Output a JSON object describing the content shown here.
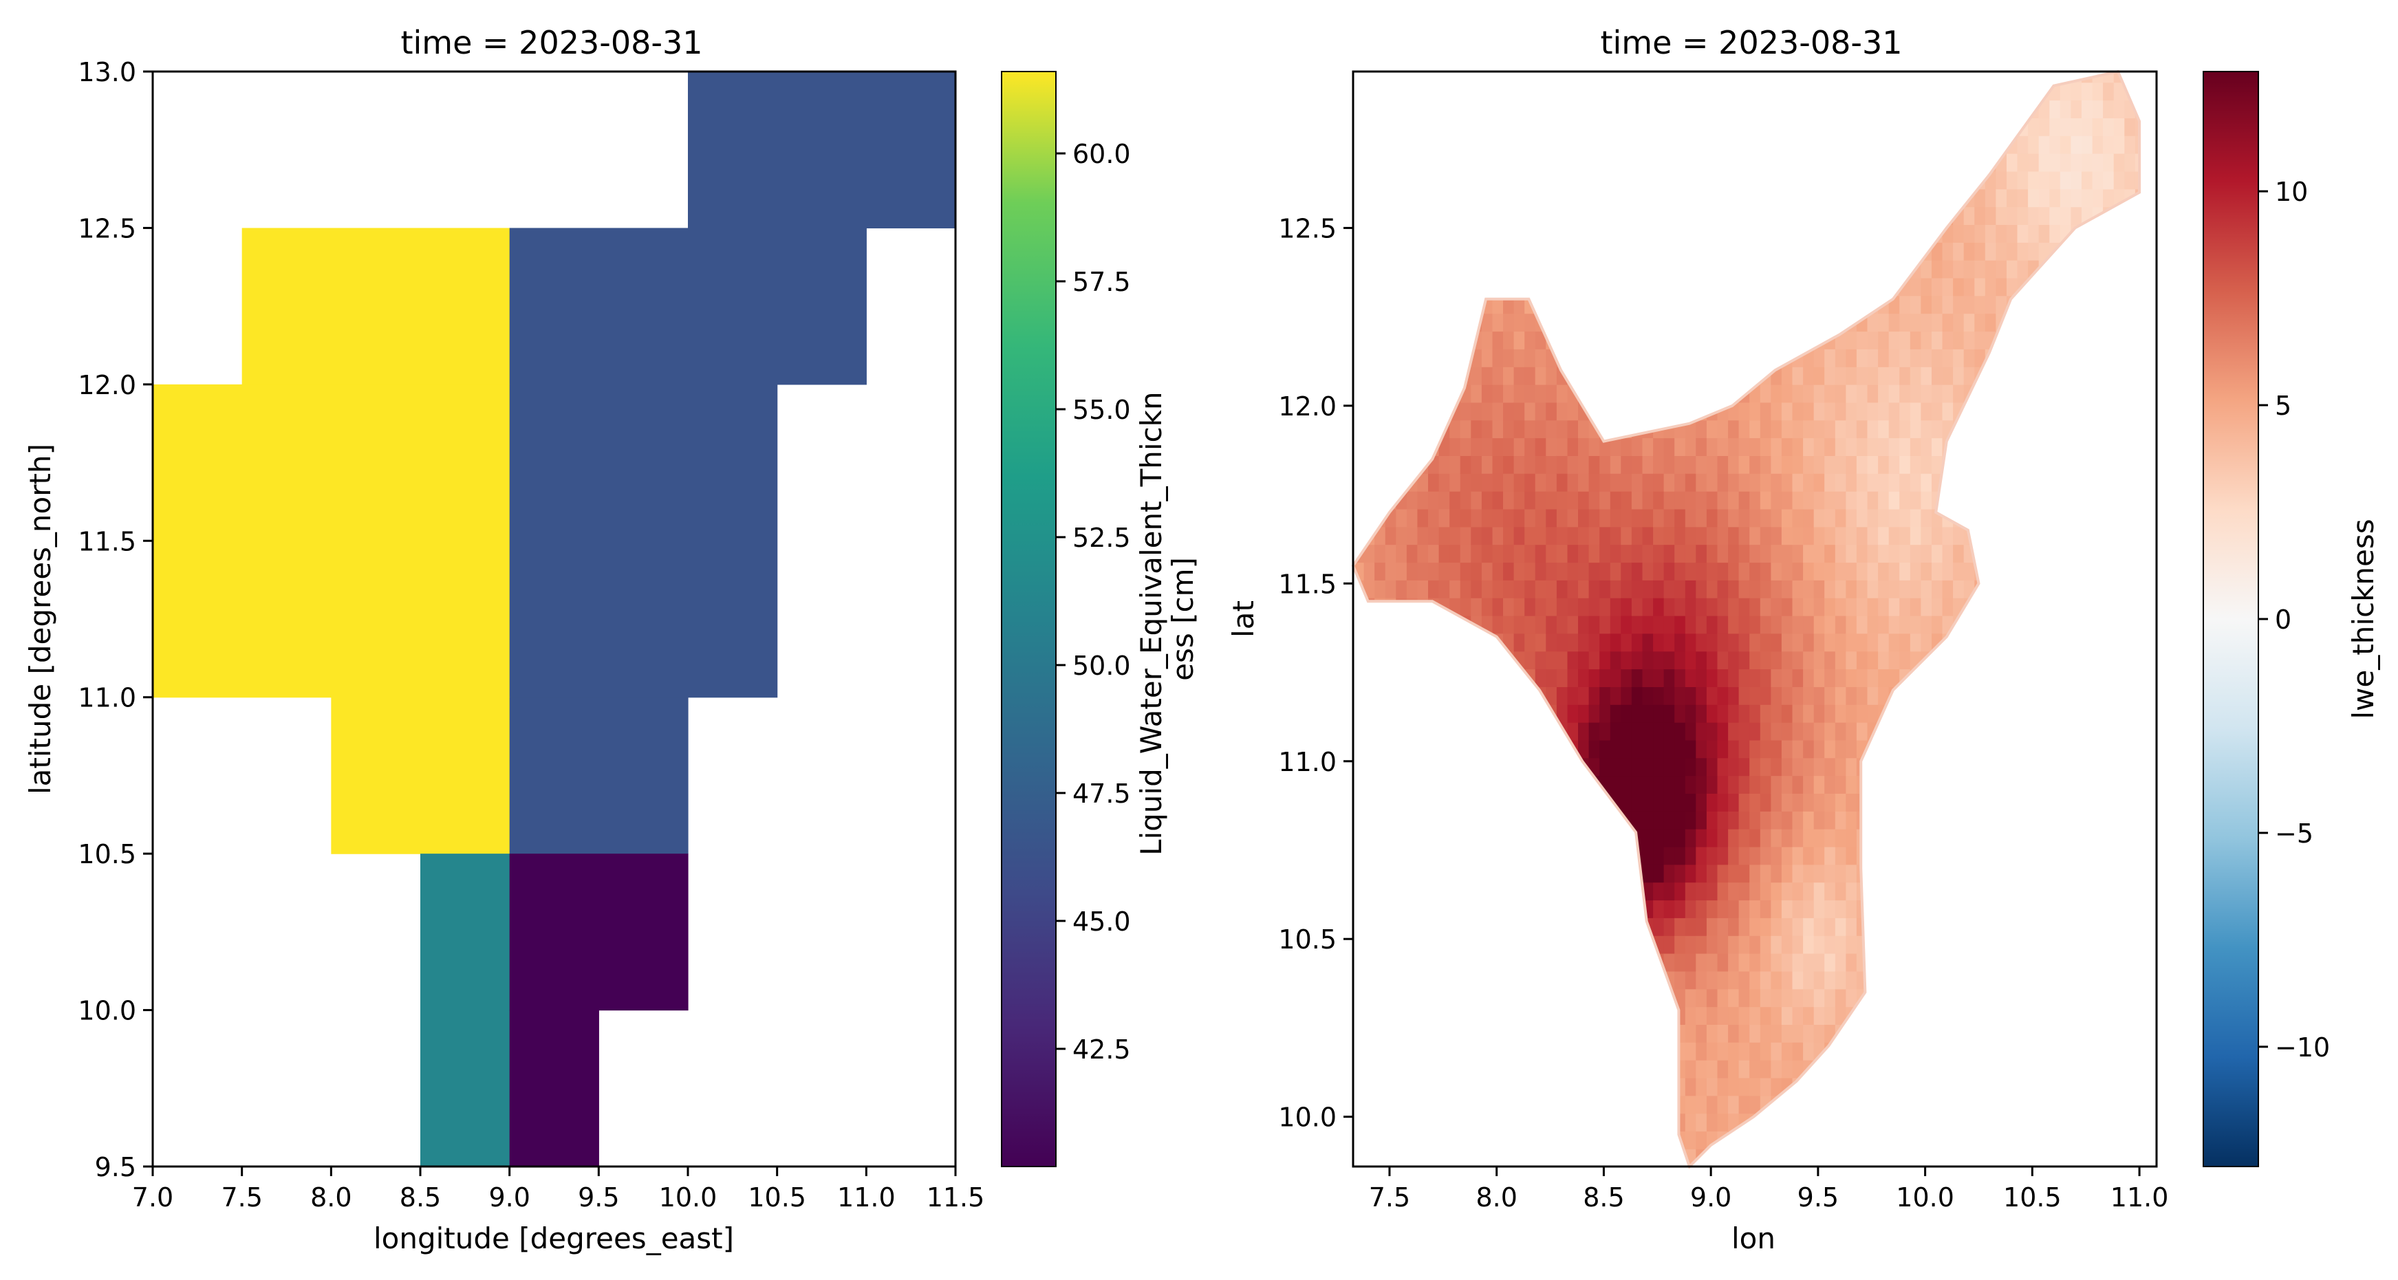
{
  "chart_data": [
    {
      "type": "heatmap",
      "title": "time = 2023-08-31",
      "xlabel": "longitude [degrees_east]",
      "ylabel": "latitude [degrees_north]",
      "xlim": [
        7.0,
        11.5
      ],
      "ylim": [
        9.5,
        13.0
      ],
      "x_ticks": [
        "7.0",
        "7.5",
        "8.0",
        "8.5",
        "9.0",
        "9.5",
        "10.0",
        "10.5",
        "11.0",
        "11.5"
      ],
      "y_ticks": [
        "9.5",
        "10.0",
        "10.5",
        "11.0",
        "11.5",
        "12.0",
        "12.5",
        "13.0"
      ],
      "colormap": "viridis",
      "colorbar": {
        "label": "Liquid_Water_Equivalent_Thickness [cm]",
        "label_lines": [
          "Liquid_Water_Equivalent_Thickn",
          "ess [cm]"
        ],
        "range": [
          40.2,
          61.6
        ],
        "ticks": [
          "42.5",
          "45.0",
          "47.5",
          "50.0",
          "52.5",
          "55.0",
          "57.5",
          "60.0"
        ]
      },
      "cells": [
        {
          "lon": [
            10.0,
            11.5
          ],
          "lat": [
            12.5,
            13.0
          ],
          "value": 46.5
        },
        {
          "lon": [
            7.5,
            9.0
          ],
          "lat": [
            12.0,
            12.5
          ],
          "value": 61.6
        },
        {
          "lon": [
            9.0,
            11.0
          ],
          "lat": [
            12.0,
            12.5
          ],
          "value": 46.5
        },
        {
          "lon": [
            7.0,
            9.0
          ],
          "lat": [
            11.0,
            12.0
          ],
          "value": 61.6
        },
        {
          "lon": [
            9.0,
            10.5
          ],
          "lat": [
            11.0,
            12.0
          ],
          "value": 46.5
        },
        {
          "lon": [
            8.0,
            9.0
          ],
          "lat": [
            10.5,
            11.0
          ],
          "value": 61.6
        },
        {
          "lon": [
            9.0,
            10.0
          ],
          "lat": [
            10.5,
            11.0
          ],
          "value": 46.5
        },
        {
          "lon": [
            8.5,
            9.0
          ],
          "lat": [
            9.5,
            10.5
          ],
          "value": 51.3
        },
        {
          "lon": [
            9.0,
            10.0
          ],
          "lat": [
            10.0,
            10.5
          ],
          "value": 40.2
        },
        {
          "lon": [
            9.0,
            9.5
          ],
          "lat": [
            9.5,
            10.0
          ],
          "value": 40.2
        }
      ]
    },
    {
      "type": "heatmap",
      "title": "time = 2023-08-31",
      "xlabel": "lon",
      "ylabel": "lat",
      "xlim": [
        7.33,
        11.08
      ],
      "ylim": [
        9.86,
        12.94
      ],
      "x_ticks": [
        "7.5",
        "8.0",
        "8.5",
        "9.0",
        "9.5",
        "10.0",
        "10.5",
        "11.0"
      ],
      "y_ticks": [
        "10.0",
        "10.5",
        "11.0",
        "11.5",
        "12.0",
        "12.5"
      ],
      "colormap": "RdBu_r",
      "colorbar": {
        "label": "lwe_thickness",
        "range": [
          -12.8,
          12.8
        ],
        "ticks": [
          "−10",
          "−5",
          "0",
          "5",
          "10"
        ]
      },
      "basin_outline": [
        [
          10.6,
          12.9
        ],
        [
          10.9,
          12.94
        ],
        [
          11.0,
          12.8
        ],
        [
          11.0,
          12.6
        ],
        [
          10.7,
          12.5
        ],
        [
          10.4,
          12.3
        ],
        [
          10.3,
          12.15
        ],
        [
          10.1,
          11.9
        ],
        [
          10.05,
          11.7
        ],
        [
          10.2,
          11.65
        ],
        [
          10.25,
          11.5
        ],
        [
          10.1,
          11.35
        ],
        [
          9.85,
          11.2
        ],
        [
          9.7,
          11.0
        ],
        [
          9.7,
          10.7
        ],
        [
          9.72,
          10.35
        ],
        [
          9.55,
          10.2
        ],
        [
          9.4,
          10.1
        ],
        [
          9.2,
          10.0
        ],
        [
          9.0,
          9.92
        ],
        [
          8.9,
          9.86
        ],
        [
          8.85,
          9.95
        ],
        [
          8.85,
          10.3
        ],
        [
          8.7,
          10.55
        ],
        [
          8.65,
          10.8
        ],
        [
          8.4,
          11.0
        ],
        [
          8.2,
          11.2
        ],
        [
          8.0,
          11.35
        ],
        [
          7.7,
          11.45
        ],
        [
          7.4,
          11.45
        ],
        [
          7.33,
          11.55
        ],
        [
          7.5,
          11.7
        ],
        [
          7.7,
          11.85
        ],
        [
          7.85,
          12.05
        ],
        [
          7.95,
          12.3
        ],
        [
          8.15,
          12.3
        ],
        [
          8.3,
          12.1
        ],
        [
          8.5,
          11.9
        ],
        [
          8.9,
          11.95
        ],
        [
          9.1,
          12.0
        ],
        [
          9.3,
          12.1
        ],
        [
          9.6,
          12.2
        ],
        [
          9.85,
          12.3
        ],
        [
          10.1,
          12.5
        ],
        [
          10.3,
          12.65
        ]
      ],
      "value_field": {
        "base": 5.0,
        "min": 1.5,
        "max": 12.8,
        "hotspots": [
          {
            "lon": 8.65,
            "lat": 10.85,
            "value": 12.8,
            "radius": 0.35
          },
          {
            "lon": 8.85,
            "lat": 11.2,
            "value": 9.5,
            "radius": 0.55
          },
          {
            "lon": 8.0,
            "lat": 11.6,
            "value": 7.5,
            "radius": 0.6
          },
          {
            "lon": 9.5,
            "lat": 10.5,
            "value": 3.0,
            "radius": 0.25
          },
          {
            "lon": 10.7,
            "lat": 12.7,
            "value": 2.0,
            "radius": 0.4
          },
          {
            "lon": 9.9,
            "lat": 11.8,
            "value": 3.0,
            "radius": 0.45
          }
        ]
      }
    }
  ]
}
